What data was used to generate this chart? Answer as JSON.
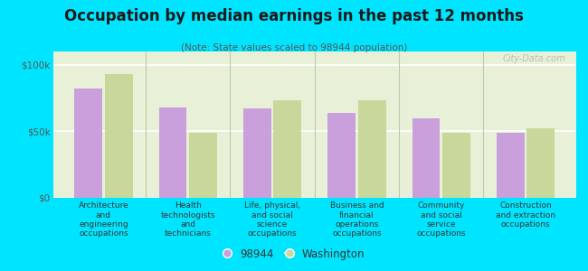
{
  "title": "Occupation by median earnings in the past 12 months",
  "subtitle": "(Note: State values scaled to 98944 population)",
  "categories": [
    "Architecture\nand\nengineering\noccupations",
    "Health\ntechnologists\nand\ntechnicians",
    "Life, physical,\nand social\nscience\noccupations",
    "Business and\nfinancial\noperations\noccupations",
    "Community\nand social\nservice\noccupations",
    "Construction\nand extraction\noccupations"
  ],
  "values_98944": [
    82000,
    68000,
    67000,
    64000,
    60000,
    49000
  ],
  "values_washington": [
    93000,
    49000,
    73000,
    73000,
    49000,
    52000
  ],
  "color_98944": "#c9a0dc",
  "color_washington": "#c8d89a",
  "background_color": "#00e5ff",
  "plot_bg_color": "#e8f0d8",
  "ylabel_ticks": [
    0,
    50000,
    100000
  ],
  "ylabel_labels": [
    "$0",
    "$50k",
    "$100k"
  ],
  "ylim": [
    0,
    110000
  ],
  "legend_label_1": "98944",
  "legend_label_2": "Washington",
  "watermark": "City-Data.com",
  "title_fontsize": 12,
  "subtitle_fontsize": 7.5,
  "tick_label_fontsize": 6.5,
  "ytick_fontsize": 7.5
}
